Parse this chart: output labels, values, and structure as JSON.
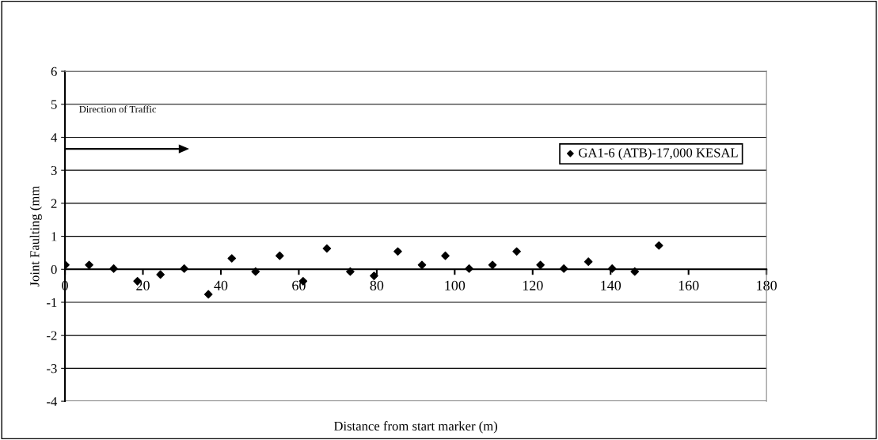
{
  "chart_data": {
    "type": "scatter",
    "xlabel": "Distance from start marker (m)",
    "ylabel": "Joint Faulting (mm",
    "annotations": [
      "Direction of Traffic"
    ],
    "series": [
      {
        "name": "GA1-6 (ATB)-17,000 KESAL",
        "color": "#000000",
        "x": [
          0.1,
          6.2,
          12.5,
          18.6,
          24.5,
          30.6,
          36.8,
          42.8,
          48.9,
          55.1,
          61.1,
          67.2,
          73.2,
          79.3,
          85.4,
          91.6,
          97.6,
          103.7,
          109.7,
          115.9,
          122.0,
          128.0,
          134.3,
          140.4,
          146.2,
          152.4
        ],
        "values": [
          0.13,
          0.13,
          0.02,
          -0.36,
          -0.16,
          0.02,
          -0.76,
          0.33,
          -0.07,
          0.41,
          -0.36,
          0.63,
          -0.07,
          -0.2,
          0.54,
          0.13,
          0.41,
          0.02,
          0.13,
          0.54,
          0.13,
          0.02,
          0.23,
          0.02,
          -0.07,
          0.72
        ]
      }
    ],
    "xlim": [
      0,
      180
    ],
    "xticks": [
      0,
      20,
      40,
      60,
      80,
      100,
      120,
      140,
      160,
      180
    ],
    "ylim": [
      -4,
      6
    ],
    "yticks": [
      -4,
      -3,
      -2,
      -1,
      0,
      1,
      2,
      3,
      4,
      5,
      6
    ],
    "grid": "y",
    "legend": "top right",
    "marker": "diamond"
  }
}
